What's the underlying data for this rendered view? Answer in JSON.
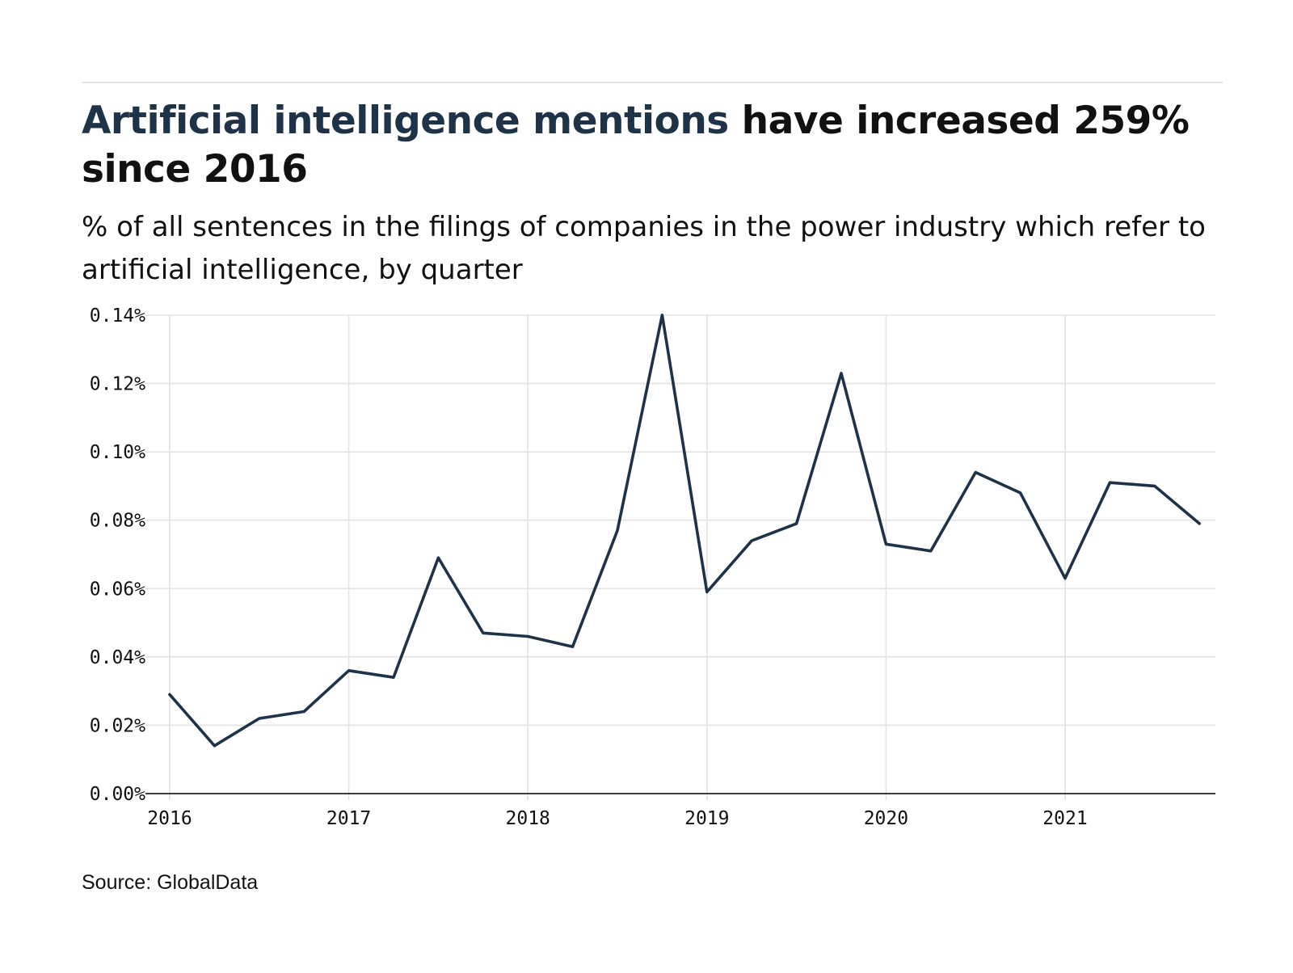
{
  "header": {
    "title_highlight": "Artificial intelligence mentions",
    "title_rest": " have increased 259% since 2016",
    "subtitle": "% of all sentences in the filings of companies in the power industry which refer to artificial intelligence, by quarter"
  },
  "footer": {
    "source": "Source: GlobalData"
  },
  "colors": {
    "line": "#1e3248",
    "title_highlight": "#1e3248",
    "grid": "#e3e3e3",
    "axis": "#222222",
    "text": "#111111"
  },
  "chart_data": {
    "type": "line",
    "title": "Artificial intelligence mentions have increased 259% since 2016",
    "subtitle": "% of all sentences in the filings of companies in the power industry which refer to artificial intelligence, by quarter",
    "xlabel": "",
    "ylabel": "",
    "x": [
      "2016 Q1",
      "2016 Q2",
      "2016 Q3",
      "2016 Q4",
      "2017 Q1",
      "2017 Q2",
      "2017 Q3",
      "2017 Q4",
      "2018 Q1",
      "2018 Q2",
      "2018 Q3",
      "2018 Q4",
      "2019 Q1",
      "2019 Q2",
      "2019 Q3",
      "2019 Q4",
      "2020 Q1",
      "2020 Q2",
      "2020 Q3",
      "2020 Q4",
      "2021 Q1",
      "2021 Q2",
      "2021 Q3",
      "2021 Q4"
    ],
    "series": [
      {
        "values": [
          0.029,
          0.014,
          0.022,
          0.024,
          0.036,
          0.034,
          0.069,
          0.047,
          0.046,
          0.043,
          0.077,
          0.14,
          0.059,
          0.074,
          0.079,
          0.123,
          0.073,
          0.071,
          0.094,
          0.088,
          0.063,
          0.091,
          0.09,
          0.079
        ]
      }
    ],
    "x_ticks": [
      "2016",
      "2017",
      "2018",
      "2019",
      "2020",
      "2021"
    ],
    "y_ticks": [
      "0.00%",
      "0.02%",
      "0.04%",
      "0.06%",
      "0.08%",
      "0.10%",
      "0.12%",
      "0.14%"
    ],
    "ylim": [
      0,
      0.14
    ],
    "grid": true,
    "legend": "none"
  }
}
